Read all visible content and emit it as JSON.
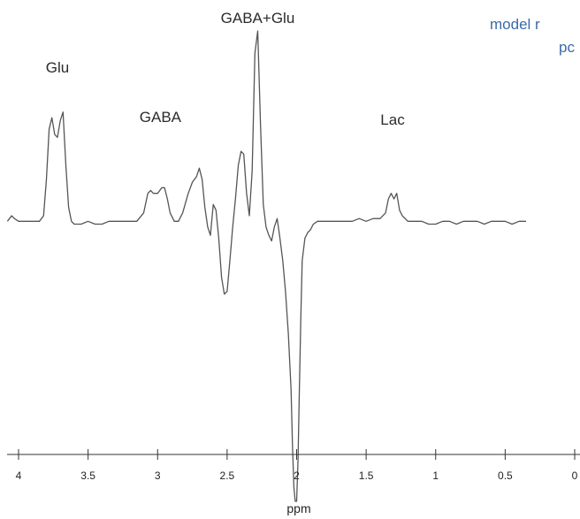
{
  "caption": {
    "line1": "model r",
    "line2": "pc",
    "color": "#3a6aa8"
  },
  "chart_data": {
    "type": "line",
    "title": "",
    "xlabel": "ppm",
    "ylabel": "",
    "x_reversed": true,
    "xlim": [
      4.07,
      0.0
    ],
    "ylim": [
      -1.0,
      0.68
    ],
    "ticks": [
      "4",
      "3.5",
      "3",
      "2.5",
      "2",
      "1.5",
      "1",
      "0.5",
      "0"
    ],
    "tick_values": [
      4,
      3.5,
      3,
      2.5,
      2,
      1.5,
      1,
      0.5,
      0
    ],
    "grid": false,
    "line_color": "#555555",
    "annotations": [
      {
        "text": "Glu",
        "ppm": 3.72
      },
      {
        "text": "GABA",
        "ppm": 2.98
      },
      {
        "text": "GABA+Glu",
        "ppm": 2.28
      },
      {
        "text": "Lac",
        "ppm": 1.31
      }
    ],
    "series": [
      {
        "x": [
          4.08,
          4.05,
          4.03,
          4.0,
          3.95,
          3.9,
          3.85,
          3.82,
          3.8,
          3.78,
          3.76,
          3.74,
          3.72,
          3.7,
          3.68,
          3.66,
          3.64,
          3.62,
          3.6,
          3.55,
          3.5,
          3.45,
          3.4,
          3.35,
          3.3,
          3.25,
          3.2,
          3.15,
          3.1,
          3.07,
          3.05,
          3.03,
          3.0,
          2.97,
          2.95,
          2.93,
          2.91,
          2.88,
          2.85,
          2.82,
          2.78,
          2.75,
          2.72,
          2.7,
          2.68,
          2.66,
          2.64,
          2.62,
          2.6,
          2.58,
          2.56,
          2.54,
          2.52,
          2.5,
          2.48,
          2.46,
          2.44,
          2.42,
          2.4,
          2.38,
          2.36,
          2.34,
          2.32,
          2.3,
          2.28,
          2.26,
          2.24,
          2.22,
          2.2,
          2.18,
          2.16,
          2.14,
          2.12,
          2.1,
          2.08,
          2.06,
          2.04,
          2.03,
          2.02,
          2.01,
          2.0,
          1.99,
          1.98,
          1.97,
          1.96,
          1.94,
          1.92,
          1.9,
          1.88,
          1.85,
          1.82,
          1.78,
          1.74,
          1.7,
          1.65,
          1.6,
          1.55,
          1.5,
          1.45,
          1.4,
          1.36,
          1.34,
          1.32,
          1.3,
          1.28,
          1.26,
          1.24,
          1.2,
          1.15,
          1.1,
          1.05,
          1.0,
          0.95,
          0.9,
          0.85,
          0.8,
          0.75,
          0.7,
          0.65,
          0.6,
          0.55,
          0.5,
          0.45,
          0.4,
          0.35
        ],
        "y": [
          0.0,
          0.02,
          0.01,
          0.0,
          0.0,
          0.0,
          0.0,
          0.02,
          0.15,
          0.33,
          0.37,
          0.31,
          0.3,
          0.36,
          0.39,
          0.2,
          0.05,
          0.0,
          -0.01,
          -0.01,
          0.0,
          -0.01,
          -0.01,
          0.0,
          0.0,
          0.0,
          0.0,
          0.0,
          0.03,
          0.1,
          0.11,
          0.1,
          0.1,
          0.12,
          0.12,
          0.08,
          0.03,
          0.0,
          0.0,
          0.03,
          0.1,
          0.14,
          0.16,
          0.19,
          0.15,
          0.05,
          -0.02,
          -0.05,
          0.06,
          0.04,
          -0.06,
          -0.2,
          -0.26,
          -0.25,
          -0.14,
          -0.02,
          0.08,
          0.2,
          0.25,
          0.24,
          0.1,
          0.02,
          0.18,
          0.6,
          0.68,
          0.35,
          0.06,
          -0.02,
          -0.05,
          -0.07,
          -0.02,
          0.01,
          -0.06,
          -0.14,
          -0.25,
          -0.4,
          -0.6,
          -0.8,
          -0.95,
          -1.0,
          -1.0,
          -0.85,
          -0.6,
          -0.35,
          -0.14,
          -0.06,
          -0.04,
          -0.03,
          -0.01,
          0.0,
          0.0,
          0.0,
          0.0,
          0.0,
          0.0,
          0.0,
          0.01,
          0.0,
          0.01,
          0.01,
          0.03,
          0.08,
          0.1,
          0.08,
          0.1,
          0.04,
          0.02,
          0.0,
          0.0,
          0.0,
          -0.01,
          -0.01,
          0.0,
          0.0,
          -0.01,
          0.0,
          0.0,
          0.0,
          -0.01,
          0.0,
          0.0,
          0.0,
          -0.01,
          0.0,
          0.0
        ]
      }
    ]
  }
}
